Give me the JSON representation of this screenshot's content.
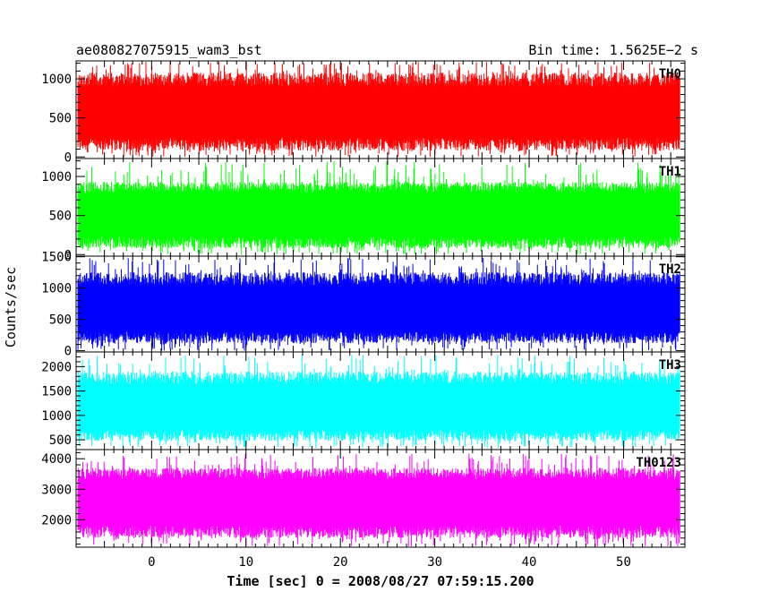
{
  "chart_data": {
    "type": "line",
    "title": "ae080827075915_wam3_bst",
    "subtitle": "Bin time: 1.5625E−2 s",
    "xlabel": "Time [sec] 0 = 2008/08/27 07:59:15.200",
    "ylabel": "Counts/sec",
    "xlim": [
      -8,
      56.5
    ],
    "x_ticks": [
      0,
      10,
      20,
      30,
      40,
      50
    ],
    "x_range_data": [
      -7.8,
      56.0
    ],
    "grid": false,
    "panels": [
      {
        "label": "TH0",
        "color": "#ff0000",
        "ylim": [
          -20,
          1230
        ],
        "y_ticks": [
          0,
          500,
          1000
        ],
        "band": [
          80,
          1080
        ],
        "range": [
          0,
          1230
        ],
        "mean": 560
      },
      {
        "label": "TH1",
        "color": "#00ff00",
        "ylim": [
          -20,
          1230
        ],
        "y_ticks": [
          0,
          500,
          1000
        ],
        "band": [
          80,
          930
        ],
        "range": [
          0,
          1200
        ],
        "mean": 520
      },
      {
        "label": "TH2",
        "color": "#0000ff",
        "ylim": [
          -20,
          1510
        ],
        "y_ticks": [
          0,
          500,
          1000,
          1500
        ],
        "band": [
          120,
          1250
        ],
        "range": [
          0,
          1500
        ],
        "mean": 660
      },
      {
        "label": "TH3",
        "color": "#00ffff",
        "ylim": [
          300,
          2300
        ],
        "y_ticks": [
          500,
          1000,
          1500,
          2000
        ],
        "band": [
          480,
          1900
        ],
        "range": [
          330,
          2250
        ],
        "mean": 1150
      },
      {
        "label": "TH0123",
        "color": "#ff00ff",
        "ylim": [
          1100,
          4300
        ],
        "y_ticks": [
          2000,
          3000,
          4000
        ],
        "band": [
          1400,
          3700
        ],
        "range": [
          1120,
          4200
        ],
        "mean": 2600
      }
    ]
  }
}
